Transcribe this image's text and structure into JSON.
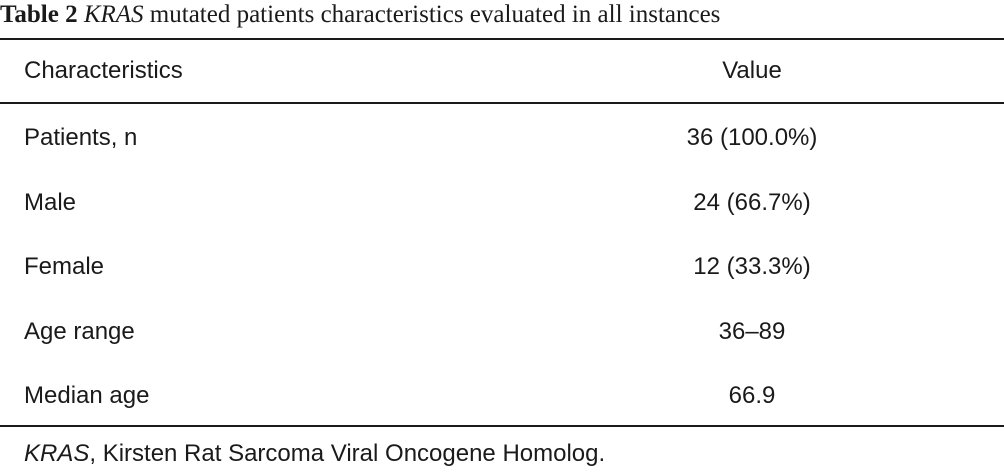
{
  "table": {
    "caption_label": "Table 2",
    "caption_gene": "KRAS",
    "caption_rest": "mutated patients characteristics evaluated in all instances",
    "headers": [
      "Characteristics",
      "Value"
    ],
    "rows": [
      {
        "characteristic": "Patients, n",
        "value": "36 (100.0%)"
      },
      {
        "characteristic": "Male",
        "value": "24 (66.7%)"
      },
      {
        "characteristic": "Female",
        "value": "12 (33.3%)"
      },
      {
        "characteristic": "Age range",
        "value": "36–89"
      },
      {
        "characteristic": "Median age",
        "value": "66.9"
      }
    ],
    "footnote_gene": "KRAS",
    "footnote_rest": ", Kirsten Rat Sarcoma Viral Oncogene Homolog."
  }
}
